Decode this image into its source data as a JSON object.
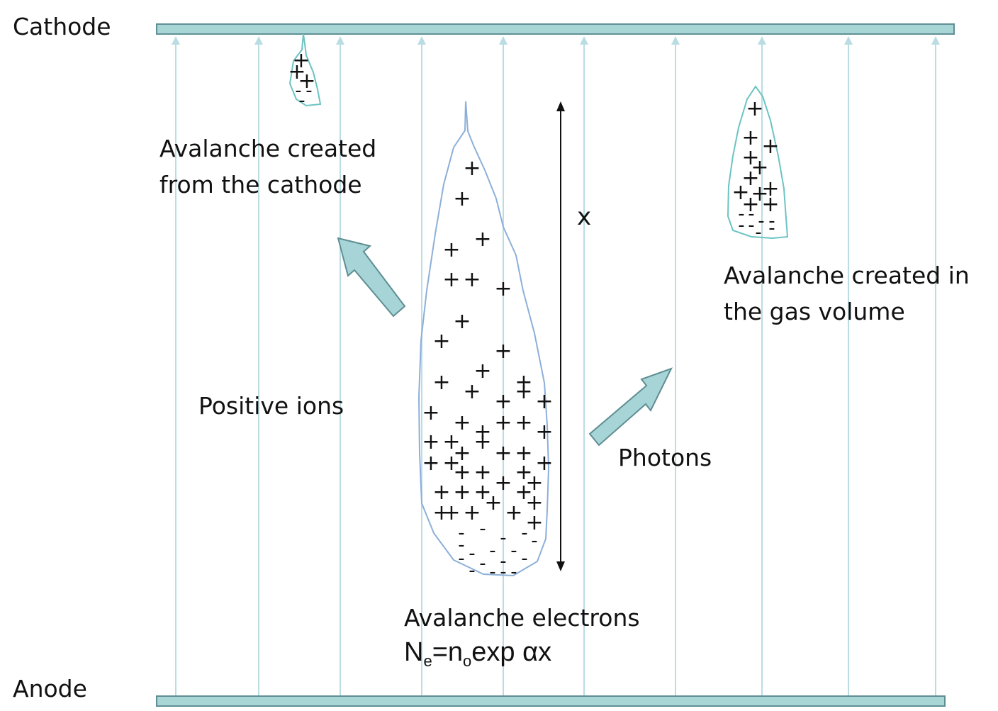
{
  "electrodes": {
    "cathode_label": "Cathode",
    "anode_label": "Anode",
    "plate_color": "#a8d6d6",
    "plate_stroke": "#5f8f95"
  },
  "field_lines": {
    "color": "#b9dde2",
    "count": 10
  },
  "labels": {
    "avalanche_cathode_line1": "Avalanche created",
    "avalanche_cathode_line2": "from the cathode",
    "avalanche_gas_line1": "Avalanche created in",
    "avalanche_gas_line2": "the gas volume",
    "positive_ions": "Positive ions",
    "photons": "Photons",
    "avalanche_electrons": "Avalanche electrons",
    "distance": "x"
  },
  "formula": {
    "lhs": "N",
    "lhs_sub": "e",
    "eq": "=n",
    "eq_sub": "o",
    "rhs": "exp αx"
  },
  "charges": {
    "positive_symbol": "+",
    "negative_symbol": "-"
  },
  "colors": {
    "arrow_fill": "#a7d4d6",
    "arrow_stroke": "#5e8e92",
    "avalanche_outline_main": "#8cafd9",
    "avalanche_outline_small": "#6cc3c3"
  }
}
